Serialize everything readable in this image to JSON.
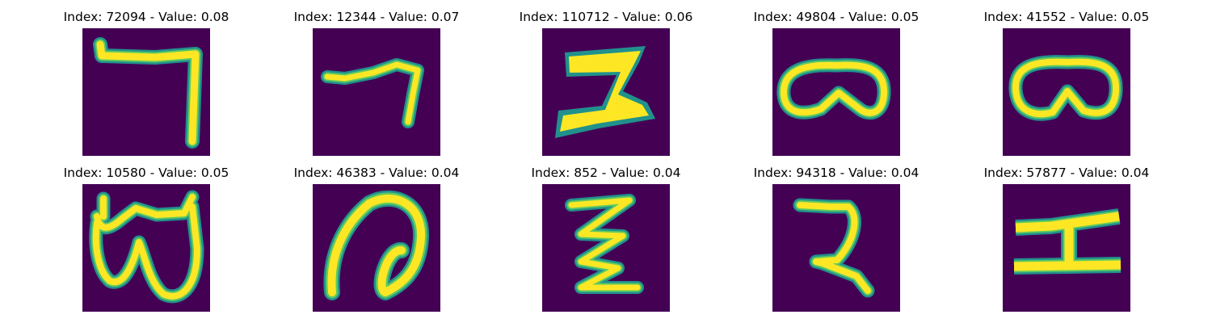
{
  "figure": {
    "background_color": "#440154",
    "stroke_outer_color": "#21918c",
    "stroke_mid_color": "#5ec962",
    "stroke_inner_color": "#fde725",
    "panels": [
      {
        "title": "Index: 72094 - Value: 0.08"
      },
      {
        "title": "Index: 12344 - Value: 0.07"
      },
      {
        "title": "Index: 110712 - Value: 0.06"
      },
      {
        "title": "Index: 49804 - Value: 0.05"
      },
      {
        "title": "Index: 41552 - Value: 0.05"
      },
      {
        "title": "Index: 10580 - Value: 0.05"
      },
      {
        "title": "Index: 46383 - Value: 0.04"
      },
      {
        "title": "Index: 852 - Value: 0.04"
      },
      {
        "title": "Index: 94318 - Value: 0.04"
      },
      {
        "title": "Index: 57877 - Value: 0.04"
      }
    ]
  }
}
